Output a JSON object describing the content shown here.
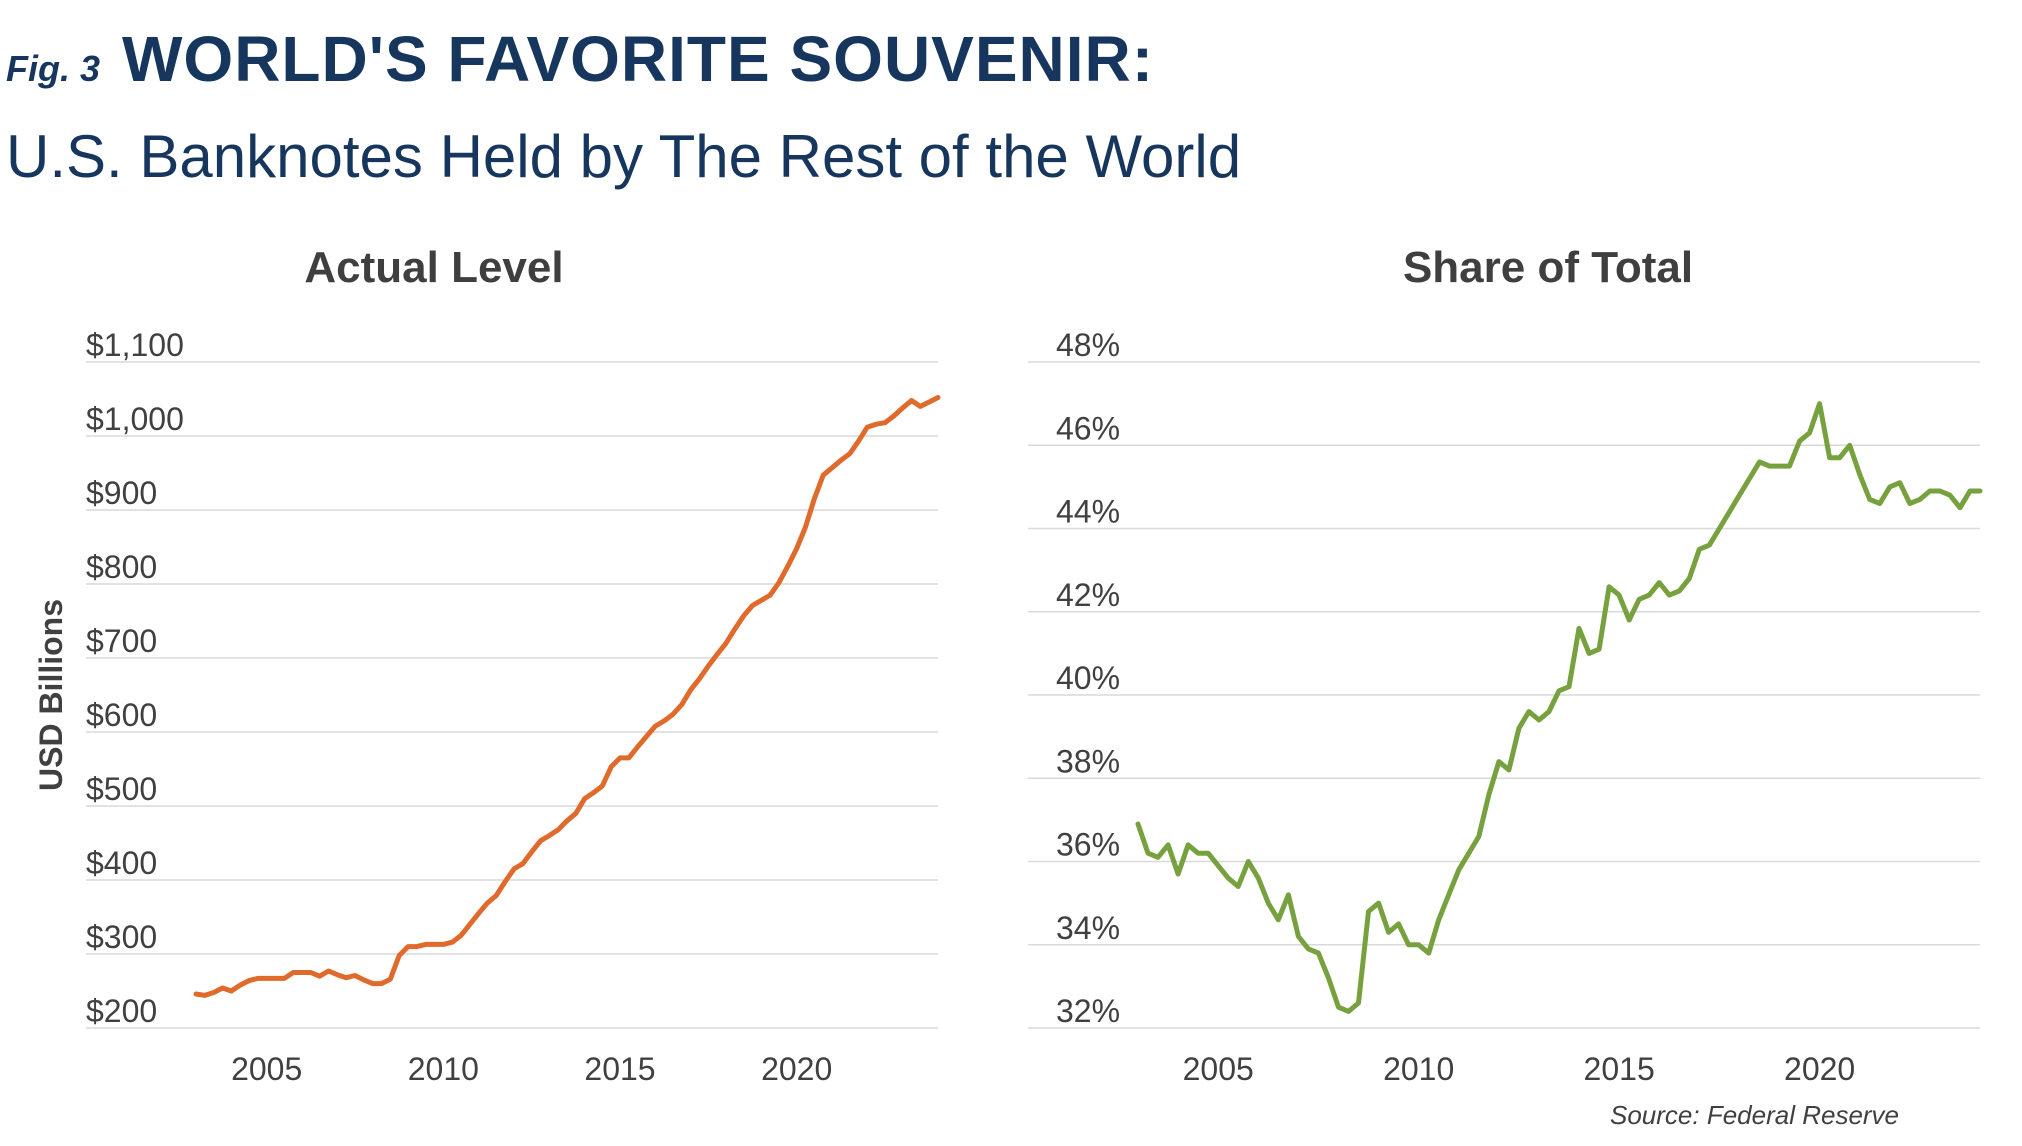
{
  "figure": {
    "label": "Fig. 3",
    "title": "WORLD'S FAVORITE SOUVENIR:",
    "subtitle": "U.S. Banknotes Held by The Rest of the World",
    "source": "Source:  Federal Reserve"
  },
  "chart_data": [
    {
      "type": "line",
      "title": "Actual Level",
      "ylabel": "USD Billions",
      "xlabel": "",
      "xlim": [
        2003,
        2024
      ],
      "xticks": [
        2005,
        2010,
        2015,
        2020
      ],
      "ylim": [
        200,
        1100
      ],
      "yticks": [
        200,
        300,
        400,
        500,
        600,
        700,
        800,
        900,
        1000,
        1100
      ],
      "ytick_labels": [
        "$200",
        "$300",
        "$400",
        "$500",
        "$600",
        "$700",
        "$800",
        "$900",
        "$1,000",
        "$1,100"
      ],
      "grid": true,
      "color": "#e06a2c",
      "x": [
        2003.0,
        2003.25,
        2003.5,
        2003.75,
        2004.0,
        2004.25,
        2004.5,
        2004.75,
        2005.0,
        2005.25,
        2005.5,
        2005.75,
        2006.0,
        2006.25,
        2006.5,
        2006.75,
        2007.0,
        2007.25,
        2007.5,
        2007.75,
        2008.0,
        2008.25,
        2008.5,
        2008.75,
        2009.0,
        2009.25,
        2009.5,
        2009.75,
        2010.0,
        2010.25,
        2010.5,
        2010.75,
        2011.0,
        2011.25,
        2011.5,
        2011.75,
        2012.0,
        2012.25,
        2012.5,
        2012.75,
        2013.0,
        2013.25,
        2013.5,
        2013.75,
        2014.0,
        2014.25,
        2014.5,
        2014.75,
        2015.0,
        2015.25,
        2015.5,
        2015.75,
        2016.0,
        2016.25,
        2016.5,
        2016.75,
        2017.0,
        2017.25,
        2017.5,
        2017.75,
        2018.0,
        2018.25,
        2018.5,
        2018.75,
        2019.0,
        2019.25,
        2019.5,
        2019.75,
        2020.0,
        2020.25,
        2020.5,
        2020.75,
        2021.0,
        2021.25,
        2021.5,
        2021.75,
        2022.0,
        2022.25,
        2022.5,
        2022.75,
        2023.0,
        2023.25,
        2023.5,
        2023.75,
        2024.0
      ],
      "values": [
        246,
        244,
        248,
        254,
        250,
        258,
        264,
        267,
        267,
        267,
        267,
        275,
        275,
        275,
        270,
        277,
        272,
        268,
        271,
        265,
        260,
        260,
        266,
        298,
        310,
        310,
        313,
        313,
        313,
        316,
        325,
        340,
        355,
        369,
        379,
        398,
        415,
        422,
        438,
        453,
        460,
        468,
        480,
        490,
        510,
        518,
        527,
        553,
        565,
        565,
        580,
        594,
        608,
        615,
        624,
        637,
        657,
        672,
        689,
        705,
        720,
        739,
        757,
        771,
        778,
        785,
        802,
        824,
        848,
        877,
        915,
        947,
        957,
        967,
        976,
        993,
        1012,
        1016,
        1018,
        1027,
        1038,
        1048,
        1040,
        1046,
        1052
      ]
    },
    {
      "type": "line",
      "title": "Share of Total",
      "ylabel": "",
      "xlabel": "",
      "xlim": [
        2003,
        2024
      ],
      "xticks": [
        2005,
        2010,
        2015,
        2020
      ],
      "ylim": [
        32,
        48
      ],
      "yticks": [
        32,
        34,
        36,
        38,
        40,
        42,
        44,
        46,
        48
      ],
      "ytick_labels": [
        "32%",
        "34%",
        "36%",
        "38%",
        "40%",
        "42%",
        "44%",
        "46%",
        "48%"
      ],
      "grid": true,
      "color": "#77a13e",
      "x": [
        2003.0,
        2003.25,
        2003.5,
        2003.75,
        2004.0,
        2004.25,
        2004.5,
        2004.75,
        2005.0,
        2005.25,
        2005.5,
        2005.75,
        2006.0,
        2006.25,
        2006.5,
        2006.75,
        2007.0,
        2007.25,
        2007.5,
        2007.75,
        2008.0,
        2008.25,
        2008.5,
        2008.75,
        2009.0,
        2009.25,
        2009.5,
        2009.75,
        2010.0,
        2010.25,
        2010.5,
        2010.75,
        2011.0,
        2011.25,
        2011.5,
        2011.75,
        2012.0,
        2012.25,
        2012.5,
        2012.75,
        2013.0,
        2013.25,
        2013.5,
        2013.75,
        2014.0,
        2014.25,
        2014.5,
        2014.75,
        2015.0,
        2015.25,
        2015.5,
        2015.75,
        2016.0,
        2016.25,
        2016.5,
        2016.75,
        2017.0,
        2017.25,
        2017.5,
        2017.75,
        2018.0,
        2018.25,
        2018.5,
        2018.75,
        2019.0,
        2019.25,
        2019.5,
        2019.75,
        2020.0,
        2020.25,
        2020.5,
        2020.75,
        2021.0,
        2021.25,
        2021.5,
        2021.75,
        2022.0,
        2022.25,
        2022.5,
        2022.75,
        2023.0,
        2023.25,
        2023.5,
        2023.75,
        2024.0
      ],
      "values": [
        36.9,
        36.2,
        36.1,
        36.4,
        35.7,
        36.4,
        36.2,
        36.2,
        35.9,
        35.6,
        35.4,
        36.0,
        35.6,
        35.0,
        34.6,
        35.2,
        34.2,
        33.9,
        33.8,
        33.2,
        32.5,
        32.4,
        32.6,
        34.8,
        35.0,
        34.3,
        34.5,
        34.0,
        34.0,
        33.8,
        34.6,
        35.2,
        35.8,
        36.2,
        36.6,
        37.6,
        38.4,
        38.2,
        39.2,
        39.6,
        39.4,
        39.6,
        40.1,
        40.2,
        41.6,
        41.0,
        41.1,
        42.6,
        42.4,
        41.8,
        42.3,
        42.4,
        42.7,
        42.4,
        42.5,
        42.8,
        43.5,
        43.6,
        44.0,
        44.4,
        44.8,
        45.2,
        45.6,
        45.5,
        45.5,
        45.5,
        46.1,
        46.3,
        47.0,
        45.7,
        45.7,
        46.0,
        45.3,
        44.7,
        44.6,
        45.0,
        45.1,
        44.6,
        44.7,
        44.9,
        44.9,
        44.8,
        44.5,
        44.9,
        44.9
      ]
    }
  ]
}
